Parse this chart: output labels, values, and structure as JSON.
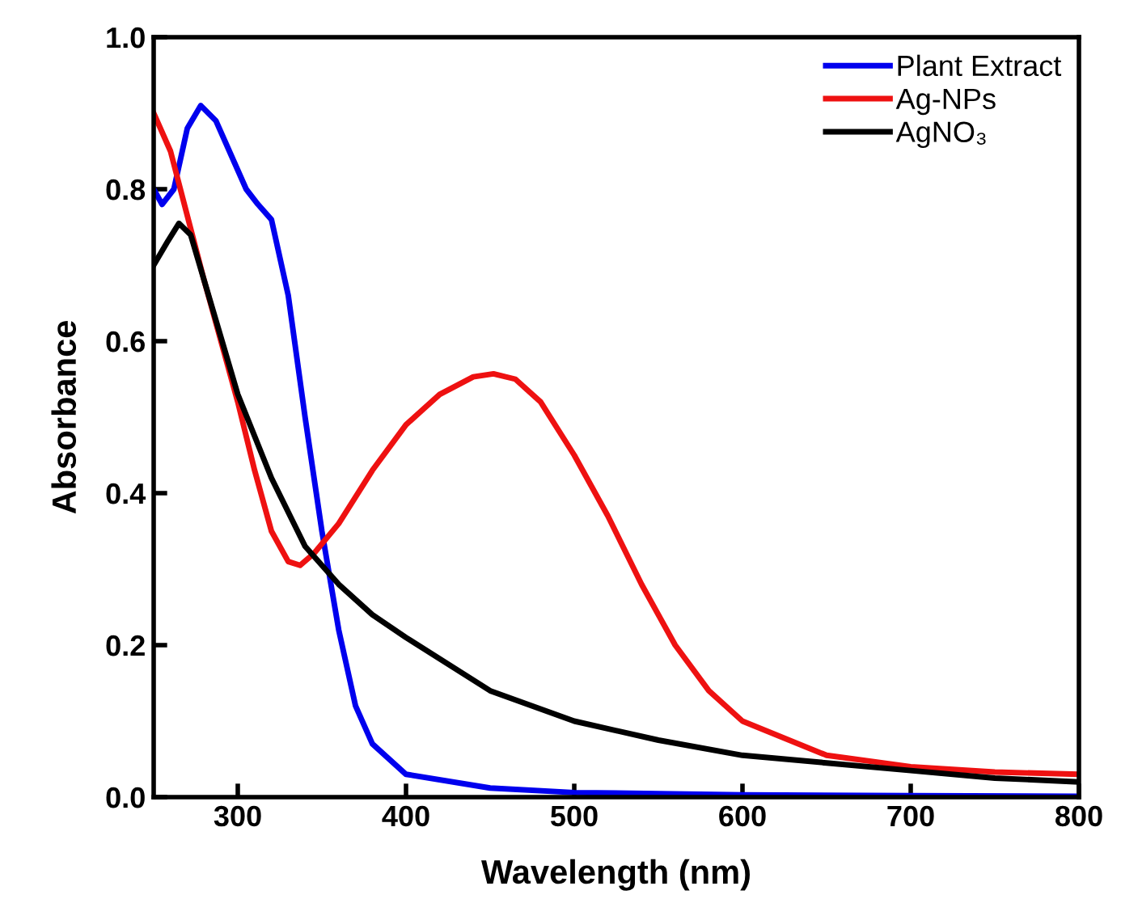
{
  "chart_data": {
    "type": "line",
    "xlabel": "Wavelength (nm)",
    "ylabel": "Absorbance",
    "xlim": [
      250,
      800
    ],
    "xticks": [
      300,
      400,
      500,
      600,
      700,
      800
    ],
    "ylim": [
      0,
      1
    ],
    "yticks": [
      {
        "value": 0,
        "label": "0.0"
      },
      0.2,
      0.4,
      0.6,
      0.8,
      {
        "value": 1,
        "label": "1.0"
      }
    ],
    "legend": "top right",
    "grid": false,
    "line_style": "solid",
    "series": [
      {
        "name": "Plant Extract",
        "color": "#0000ee",
        "x": [
          250,
          255,
          262,
          270,
          278,
          287,
          295,
          305,
          312,
          320,
          330,
          340,
          350,
          360,
          370,
          380,
          400,
          450,
          500,
          600,
          700,
          800
        ],
        "values": [
          0.8,
          0.78,
          0.8,
          0.88,
          0.91,
          0.89,
          0.85,
          0.8,
          0.78,
          0.76,
          0.66,
          0.5,
          0.35,
          0.22,
          0.12,
          0.07,
          0.03,
          0.012,
          0.006,
          0.003,
          0.002,
          0.001
        ]
      },
      {
        "name": "Ag-NPs",
        "color": "#ee1111",
        "x": [
          250,
          260,
          280,
          300,
          310,
          320,
          330,
          337,
          345,
          360,
          380,
          400,
          420,
          440,
          452,
          465,
          480,
          500,
          520,
          540,
          560,
          580,
          600,
          650,
          700,
          750,
          800
        ],
        "values": [
          0.9,
          0.85,
          0.68,
          0.52,
          0.43,
          0.35,
          0.31,
          0.305,
          0.32,
          0.36,
          0.43,
          0.49,
          0.53,
          0.553,
          0.557,
          0.55,
          0.52,
          0.45,
          0.37,
          0.28,
          0.2,
          0.14,
          0.1,
          0.055,
          0.04,
          0.033,
          0.03
        ]
      },
      {
        "name": "AgNO₃",
        "color": "#000000",
        "x": [
          250,
          258,
          265,
          272,
          280,
          300,
          320,
          340,
          360,
          380,
          400,
          450,
          500,
          550,
          600,
          650,
          700,
          750,
          800
        ],
        "values": [
          0.7,
          0.73,
          0.755,
          0.74,
          0.68,
          0.53,
          0.42,
          0.33,
          0.28,
          0.24,
          0.21,
          0.14,
          0.1,
          0.075,
          0.055,
          0.045,
          0.035,
          0.025,
          0.02
        ]
      }
    ]
  }
}
